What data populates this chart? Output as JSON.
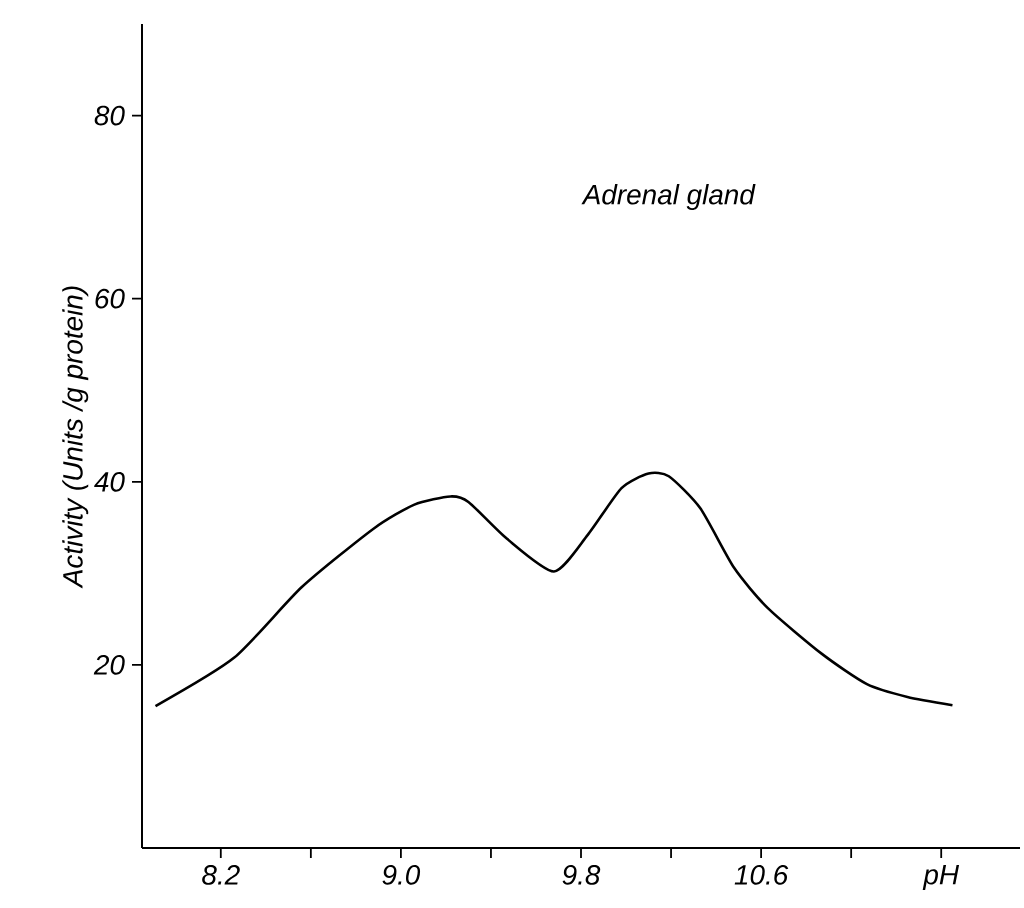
{
  "chart_data": {
    "type": "line",
    "ylabel": "Activity  (Units /g protein)",
    "annotations": [
      "Adrenal gland"
    ],
    "x": [
      7.91,
      8.26,
      8.56,
      8.88,
      9.06,
      9.22,
      9.3,
      9.47,
      9.68,
      9.83,
      9.98,
      10.1,
      10.19,
      10.33,
      10.48,
      10.63,
      10.87,
      11.07,
      11.25,
      11.45
    ],
    "values": [
      15.5,
      20.8,
      28.5,
      34.9,
      37.5,
      38.4,
      37.8,
      33.8,
      30.2,
      34.2,
      39.3,
      40.9,
      40.6,
      37.1,
      30.6,
      26.2,
      21.2,
      17.9,
      16.5,
      15.6
    ],
    "color": "#000000",
    "xlim": [
      7.85,
      11.75
    ],
    "ylim": [
      0,
      90
    ],
    "xticks": [
      8.2,
      {
        "value": 8.6,
        "label": null
      },
      {
        "value": 9.0,
        "label": "9.0"
      },
      {
        "value": 9.4,
        "label": null
      },
      9.8,
      {
        "value": 10.2,
        "label": null
      },
      10.6,
      {
        "value": 11.0,
        "label": null
      },
      {
        "value": 11.4,
        "label": "pH"
      }
    ],
    "yticks": [
      20,
      40,
      60,
      80
    ]
  }
}
